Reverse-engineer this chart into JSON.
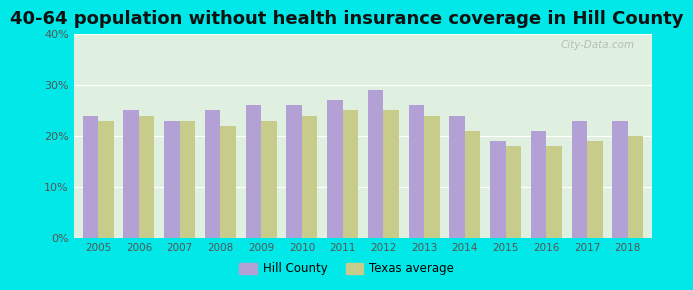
{
  "title": "40-64 population without health insurance coverage in Hill County",
  "years": [
    2005,
    2006,
    2007,
    2008,
    2009,
    2010,
    2011,
    2012,
    2013,
    2014,
    2015,
    2016,
    2017,
    2018
  ],
  "hill_county": [
    24,
    25,
    23,
    25,
    26,
    26,
    27,
    29,
    26,
    24,
    19,
    21,
    23,
    23
  ],
  "texas_avg": [
    23,
    24,
    23,
    22,
    23,
    24,
    25,
    25,
    24,
    21,
    18,
    18,
    19,
    20
  ],
  "hill_color": "#b3a0d4",
  "texas_color": "#c8cc8a",
  "background_plot_top": "#dff0e0",
  "background_plot_bottom": "#e8f0d0",
  "background_fig": "#00e8e8",
  "title_fontsize": 13,
  "ylim": [
    0,
    40
  ],
  "yticks": [
    0,
    10,
    20,
    30,
    40
  ],
  "bar_width": 0.38,
  "watermark": "City-Data.com",
  "legend_hill": "Hill County",
  "legend_texas": "Texas average"
}
